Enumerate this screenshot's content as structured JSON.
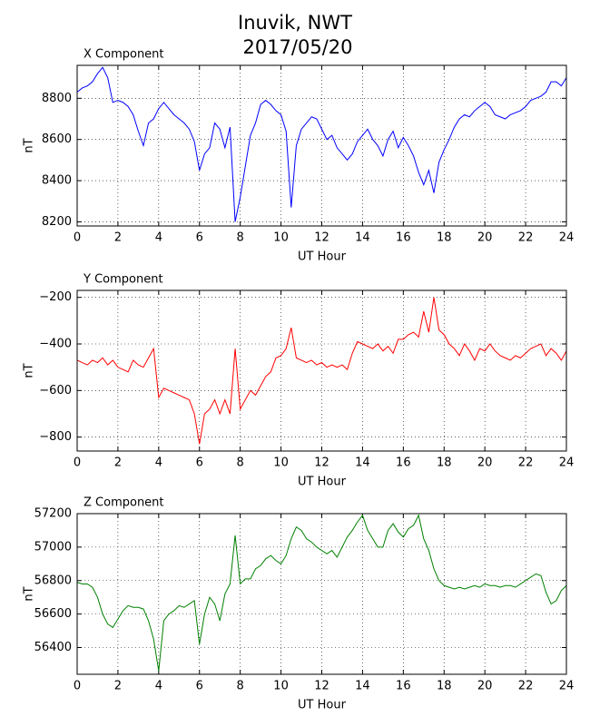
{
  "title": "Inuvik, NWT",
  "subtitle": "2017/05/20",
  "chart_data": [
    {
      "type": "line",
      "title": "X Component",
      "xlabel": "UT Hour",
      "ylabel": "nT",
      "color": "#0000ff",
      "grid": true,
      "xlim": [
        0,
        24
      ],
      "xticks": [
        0,
        2,
        4,
        6,
        8,
        10,
        12,
        14,
        16,
        18,
        20,
        22,
        24
      ],
      "ylim": [
        8180,
        8960
      ],
      "yticks": [
        8200,
        8400,
        8600,
        8800
      ],
      "x": [
        0,
        0.25,
        0.5,
        0.75,
        1,
        1.25,
        1.5,
        1.75,
        2,
        2.25,
        2.5,
        2.75,
        3,
        3.25,
        3.5,
        3.75,
        4,
        4.25,
        4.5,
        4.75,
        5,
        5.25,
        5.5,
        5.75,
        6,
        6.25,
        6.5,
        6.75,
        7,
        7.25,
        7.5,
        7.75,
        8,
        8.25,
        8.5,
        8.75,
        9,
        9.25,
        9.5,
        9.75,
        10,
        10.25,
        10.5,
        10.75,
        11,
        11.25,
        11.5,
        11.75,
        12,
        12.25,
        12.5,
        12.75,
        13,
        13.25,
        13.5,
        13.75,
        14,
        14.25,
        14.5,
        14.75,
        15,
        15.25,
        15.5,
        15.75,
        16,
        16.25,
        16.5,
        16.75,
        17,
        17.25,
        17.5,
        17.75,
        18,
        18.25,
        18.5,
        18.75,
        19,
        19.25,
        19.5,
        19.75,
        20,
        20.25,
        20.5,
        20.75,
        21,
        21.25,
        21.5,
        21.75,
        22,
        22.25,
        22.5,
        22.75,
        23,
        23.25,
        23.5,
        23.75,
        24
      ],
      "values": [
        8830,
        8850,
        8860,
        8880,
        8920,
        8950,
        8900,
        8780,
        8790,
        8780,
        8760,
        8720,
        8640,
        8570,
        8680,
        8700,
        8750,
        8780,
        8750,
        8720,
        8700,
        8680,
        8650,
        8590,
        8450,
        8530,
        8560,
        8680,
        8650,
        8560,
        8660,
        8200,
        8320,
        8470,
        8620,
        8680,
        8770,
        8790,
        8770,
        8740,
        8720,
        8640,
        8270,
        8570,
        8650,
        8680,
        8710,
        8700,
        8650,
        8600,
        8620,
        8560,
        8530,
        8500,
        8530,
        8590,
        8620,
        8650,
        8600,
        8570,
        8520,
        8600,
        8640,
        8560,
        8610,
        8570,
        8520,
        8440,
        8380,
        8450,
        8340,
        8490,
        8550,
        8600,
        8660,
        8700,
        8720,
        8710,
        8740,
        8760,
        8780,
        8760,
        8720,
        8710,
        8700,
        8720,
        8730,
        8740,
        8760,
        8790,
        8800,
        8810,
        8830,
        8880,
        8880,
        8860,
        8900
      ]
    },
    {
      "type": "line",
      "title": "Y Component",
      "xlabel": "UT Hour",
      "ylabel": "nT",
      "color": "#ff0000",
      "grid": true,
      "xlim": [
        0,
        24
      ],
      "xticks": [
        0,
        2,
        4,
        6,
        8,
        10,
        12,
        14,
        16,
        18,
        20,
        22,
        24
      ],
      "ylim": [
        -860,
        -170
      ],
      "yticks": [
        {
          "value": -800,
          "label": "−800"
        },
        {
          "value": -600,
          "label": "−600"
        },
        {
          "value": -400,
          "label": "−400"
        },
        {
          "value": -200,
          "label": "−200"
        }
      ],
      "x": [
        0,
        0.25,
        0.5,
        0.75,
        1,
        1.25,
        1.5,
        1.75,
        2,
        2.25,
        2.5,
        2.75,
        3,
        3.25,
        3.5,
        3.75,
        4,
        4.25,
        4.5,
        4.75,
        5,
        5.25,
        5.5,
        5.75,
        6,
        6.25,
        6.5,
        6.75,
        7,
        7.25,
        7.5,
        7.75,
        8,
        8.25,
        8.5,
        8.75,
        9,
        9.25,
        9.5,
        9.75,
        10,
        10.25,
        10.5,
        10.75,
        11,
        11.25,
        11.5,
        11.75,
        12,
        12.25,
        12.5,
        12.75,
        13,
        13.25,
        13.5,
        13.75,
        14,
        14.25,
        14.5,
        14.75,
        15,
        15.25,
        15.5,
        15.75,
        16,
        16.25,
        16.5,
        16.75,
        17,
        17.25,
        17.5,
        17.75,
        18,
        18.25,
        18.5,
        18.75,
        19,
        19.25,
        19.5,
        19.75,
        20,
        20.25,
        20.5,
        20.75,
        21,
        21.25,
        21.5,
        21.75,
        22,
        22.25,
        22.5,
        22.75,
        23,
        23.25,
        23.5,
        23.75,
        24
      ],
      "values": [
        -470,
        -480,
        -490,
        -470,
        -480,
        -460,
        -490,
        -470,
        -500,
        -510,
        -520,
        -470,
        -490,
        -500,
        -460,
        -420,
        -630,
        -590,
        -600,
        -610,
        -620,
        -630,
        -640,
        -700,
        -830,
        -700,
        -680,
        -640,
        -700,
        -640,
        -700,
        -420,
        -680,
        -640,
        -600,
        -620,
        -580,
        -540,
        -520,
        -460,
        -450,
        -420,
        -330,
        -460,
        -470,
        -480,
        -470,
        -490,
        -480,
        -500,
        -490,
        -500,
        -490,
        -510,
        -440,
        -390,
        -400,
        -410,
        -420,
        -400,
        -430,
        -410,
        -440,
        -380,
        -380,
        -360,
        -350,
        -370,
        -260,
        -350,
        -200,
        -340,
        -360,
        -400,
        -420,
        -450,
        -400,
        -430,
        -470,
        -420,
        -430,
        -400,
        -430,
        -450,
        -460,
        -470,
        -450,
        -460,
        -440,
        -420,
        -410,
        -400,
        -450,
        -420,
        -440,
        -470,
        -430
      ]
    },
    {
      "type": "line",
      "title": "Z Component",
      "xlabel": "UT Hour",
      "ylabel": "nT",
      "color": "#008000",
      "grid": true,
      "xlim": [
        0,
        24
      ],
      "xticks": [
        0,
        2,
        4,
        6,
        8,
        10,
        12,
        14,
        16,
        18,
        20,
        22,
        24
      ],
      "ylim": [
        56240,
        57200
      ],
      "yticks": [
        56400,
        56600,
        56800,
        57000,
        57200
      ],
      "x": [
        0,
        0.25,
        0.5,
        0.75,
        1,
        1.25,
        1.5,
        1.75,
        2,
        2.25,
        2.5,
        2.75,
        3,
        3.25,
        3.5,
        3.75,
        4,
        4.25,
        4.5,
        4.75,
        5,
        5.25,
        5.5,
        5.75,
        6,
        6.25,
        6.5,
        6.75,
        7,
        7.25,
        7.5,
        7.75,
        8,
        8.25,
        8.5,
        8.75,
        9,
        9.25,
        9.5,
        9.75,
        10,
        10.25,
        10.5,
        10.75,
        11,
        11.25,
        11.5,
        11.75,
        12,
        12.25,
        12.5,
        12.75,
        13,
        13.25,
        13.5,
        13.75,
        14,
        14.25,
        14.5,
        14.75,
        15,
        15.25,
        15.5,
        15.75,
        16,
        16.25,
        16.5,
        16.75,
        17,
        17.25,
        17.5,
        17.75,
        18,
        18.25,
        18.5,
        18.75,
        19,
        19.25,
        19.5,
        19.75,
        20,
        20.25,
        20.5,
        20.75,
        21,
        21.25,
        21.5,
        21.75,
        22,
        22.25,
        22.5,
        22.75,
        23,
        23.25,
        23.5,
        23.75,
        24
      ],
      "values": [
        56790,
        56780,
        56780,
        56760,
        56700,
        56600,
        56540,
        56520,
        56570,
        56620,
        56650,
        56640,
        56640,
        56630,
        56560,
        56450,
        56260,
        56560,
        56600,
        56620,
        56650,
        56640,
        56660,
        56680,
        56420,
        56600,
        56700,
        56660,
        56560,
        56720,
        56780,
        57070,
        56780,
        56810,
        56810,
        56870,
        56890,
        56930,
        56950,
        56920,
        56900,
        56950,
        57050,
        57120,
        57100,
        57050,
        57030,
        57000,
        56980,
        56960,
        56980,
        56940,
        57000,
        57060,
        57100,
        57150,
        57190,
        57100,
        57050,
        57000,
        57000,
        57100,
        57140,
        57090,
        57060,
        57110,
        57130,
        57190,
        57050,
        56980,
        56870,
        56800,
        56770,
        56760,
        56750,
        56760,
        56750,
        56760,
        56770,
        56760,
        56780,
        56770,
        56770,
        56760,
        56770,
        56770,
        56760,
        56780,
        56800,
        56820,
        56840,
        56830,
        56730,
        56660,
        56680,
        56740,
        56770
      ]
    }
  ]
}
